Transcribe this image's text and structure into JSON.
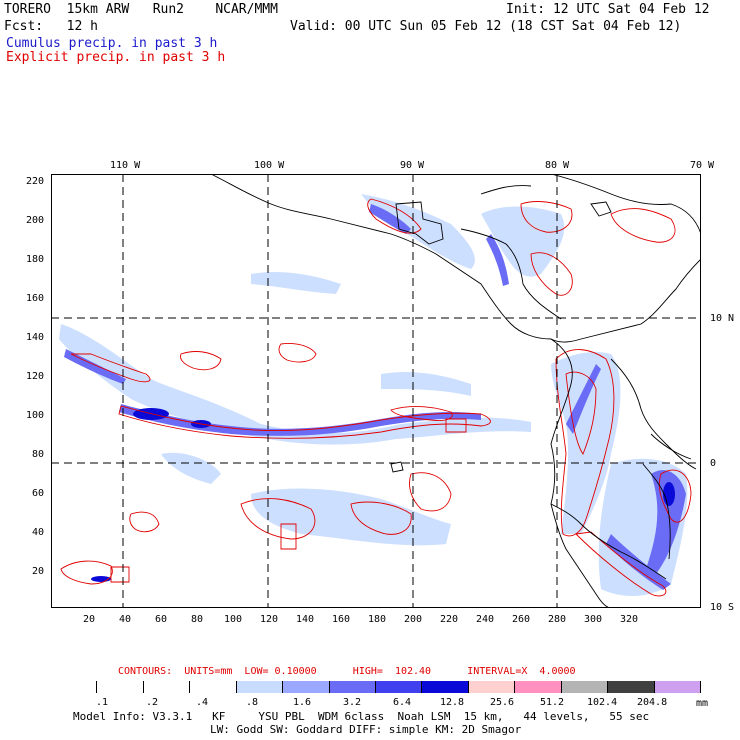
{
  "header": {
    "model": "TORERO  15km ARW   Run2    NCAR/MMM",
    "init": "Init: 12 UTC Sat 04 Feb 12",
    "fcst": "Fcst:   12 h",
    "valid": "Valid: 00 UTC Sun 05 Feb 12 (18 CST Sat 04 Feb 12)",
    "line_cumulus": "Cumulus precip. in past 3 h",
    "line_explicit": "Explicit precip. in past 3 h"
  },
  "colors": {
    "cumulus": "#1a1acc",
    "explicit": "#e00000",
    "contour": "#e00000",
    "coast": "#000000"
  },
  "axes": {
    "top_lon_labels": [
      "110 W",
      "100 W",
      "90 W",
      "80 W",
      "70 W"
    ],
    "right_lat_labels": [
      "10 N",
      "0",
      "10 S"
    ],
    "left_y_ticks": [
      "220",
      "200",
      "180",
      "160",
      "140",
      "120",
      "100",
      "80",
      "60",
      "40",
      "20"
    ],
    "bottom_x_ticks": [
      "20",
      "40",
      "60",
      "80",
      "100",
      "120",
      "140",
      "160",
      "180",
      "200",
      "220",
      "240",
      "260",
      "280",
      "300",
      "320"
    ]
  },
  "contour_info": "CONTOURS:  UNITS=mm  LOW= 0.10000      HIGH=  102.40      INTERVAL=X  4.0000",
  "colorbar": {
    "labels": [
      ".1",
      ".2",
      ".4",
      ".8",
      "1.6",
      "3.2",
      "6.4",
      "12.8",
      "25.6",
      "51.2",
      "102.4",
      "204.8"
    ],
    "unit": "mm",
    "colors": [
      "#ffffff",
      "#ffffff",
      "#ffffff",
      "#ffffff",
      "#c8dcff",
      "#9aa8ff",
      "#6a6cf5",
      "#4040ee",
      "#0a0ad8",
      "#ffd0d0",
      "#ff90c0",
      "#b4b4b4",
      "#404040",
      "#d0a0f0"
    ]
  },
  "footer": {
    "line1": "Model Info: V3.3.1   KF     YSU PBL  WDM 6class  Noah LSM  15 km,   44 levels,   55 sec",
    "line2": "LW: Godd SW: Goddard DIFF: simple KM: 2D Smagor"
  }
}
